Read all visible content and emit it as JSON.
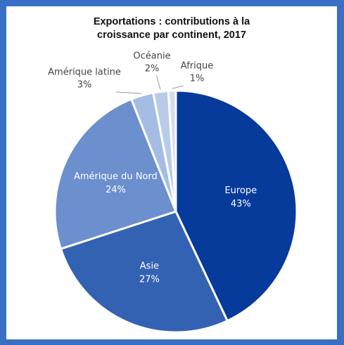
{
  "chart_data": {
    "type": "pie",
    "title": [
      "Exportations : contributions à la",
      "croissance par continent, 2017"
    ],
    "categories": [
      "Europe",
      "Asie",
      "Amérique du Nord",
      "Amérique latine",
      "Océanie",
      "Afrique"
    ],
    "values": [
      43,
      27,
      24,
      3,
      2,
      1
    ],
    "value_labels": [
      "43%",
      "27%",
      "24%",
      "3%",
      "2%",
      "1%"
    ],
    "colors": [
      "#063a9b",
      "#3462b2",
      "#6c8fcd",
      "#a5bde2",
      "#b8cbe9",
      "#d2ddf0"
    ]
  }
}
